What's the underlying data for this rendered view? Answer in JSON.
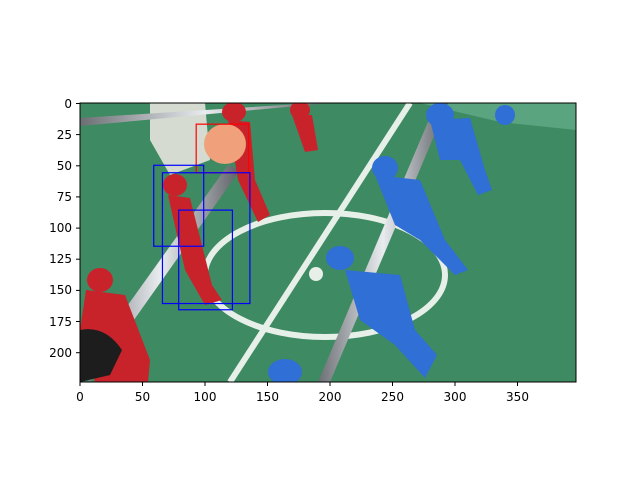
{
  "figure": {
    "x_ticks": [
      "0",
      "50",
      "100",
      "150",
      "200",
      "250",
      "300",
      "350"
    ],
    "y_ticks": [
      "0",
      "25",
      "50",
      "75",
      "100",
      "125",
      "150",
      "175",
      "200"
    ]
  },
  "image": {
    "description_source": "foosball table close-up with red and blue rod players and an orange ball",
    "x_range": [
      0,
      397
    ],
    "y_range": [
      0,
      224
    ]
  },
  "annotations": {
    "boxes": [
      {
        "label": "ball",
        "color": "#ff0000",
        "x0": 93,
        "y0": 17,
        "x1": 135,
        "y1": 56
      },
      {
        "label": "player",
        "color": "#0000ff",
        "x0": 59,
        "y0": 50,
        "x1": 99,
        "y1": 115
      },
      {
        "label": "player",
        "color": "#0000ff",
        "x0": 66,
        "y0": 56,
        "x1": 136,
        "y1": 161
      },
      {
        "label": "player",
        "color": "#0000ff",
        "x0": 79,
        "y0": 86,
        "x1": 122,
        "y1": 166
      }
    ]
  },
  "colors": {
    "field_green": "#3e8a62",
    "red_player": "#c8232b",
    "blue_player": "#2f6fd6",
    "rod": "#9aa0a6",
    "ball": "#f0a07a"
  }
}
